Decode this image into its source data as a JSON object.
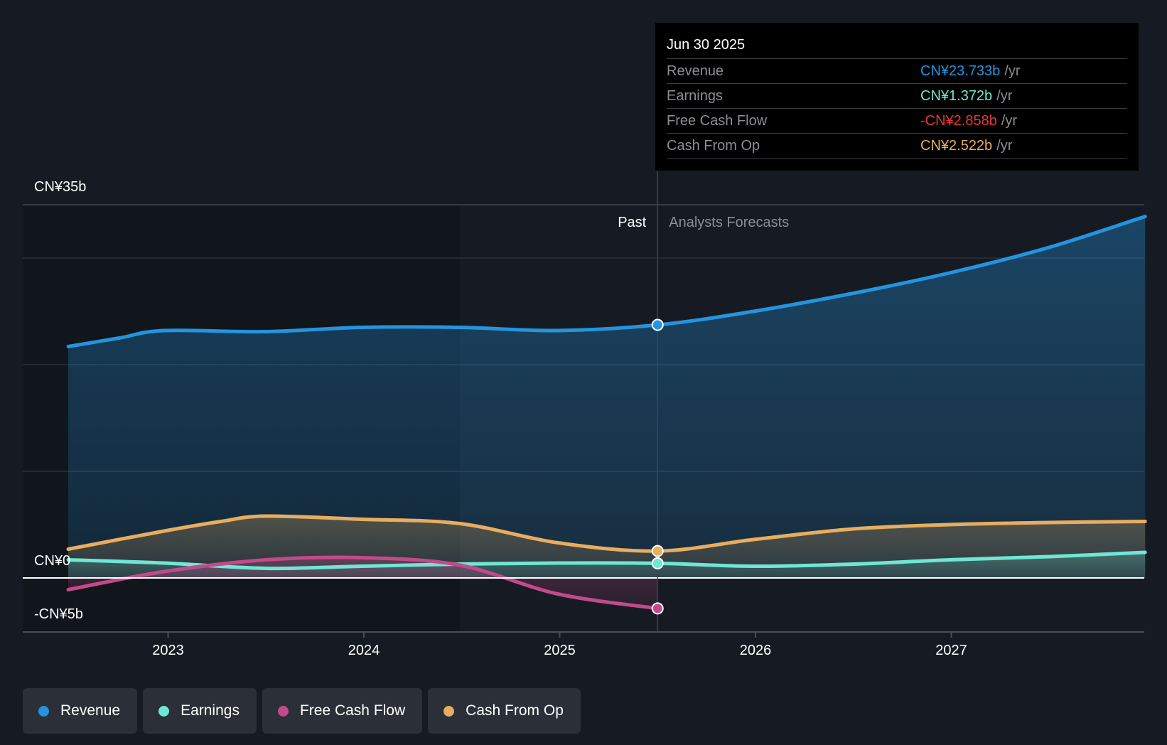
{
  "tooltip": {
    "date": "Jun 30 2025",
    "rows": [
      {
        "label": "Revenue",
        "value": "CN¥23.733b",
        "unit": "/yr",
        "color": "#2394df"
      },
      {
        "label": "Earnings",
        "value": "CN¥1.372b",
        "unit": "/yr",
        "color": "#6ee7d3"
      },
      {
        "label": "Free Cash Flow",
        "value": "-CN¥2.858b",
        "unit": "/yr",
        "color": "#e5383b"
      },
      {
        "label": "Cash From Op",
        "value": "CN¥2.522b",
        "unit": "/yr",
        "color": "#e8ad5e"
      }
    ]
  },
  "legend": [
    {
      "label": "Revenue",
      "color": "#2394df"
    },
    {
      "label": "Earnings",
      "color": "#6ee7d3"
    },
    {
      "label": "Free Cash Flow",
      "color": "#c34a8a"
    },
    {
      "label": "Cash From Op",
      "color": "#e8ad5e"
    }
  ],
  "chart_data": {
    "type": "line",
    "title": "",
    "xlabel": "",
    "ylabel": "",
    "ylim": [
      -5,
      35
    ],
    "xlim": [
      2022.35,
      2028.0
    ],
    "y_tick_labels": [
      {
        "value": 35,
        "label": "CN¥35b"
      },
      {
        "value": 0,
        "label": "CN¥0"
      },
      {
        "value": -5,
        "label": "-CN¥5b"
      }
    ],
    "gridlines": [
      35,
      30,
      20,
      10,
      0,
      -5
    ],
    "x_ticks": [
      {
        "value": 2023,
        "label": "2023"
      },
      {
        "value": 2024,
        "label": "2024"
      },
      {
        "value": 2025,
        "label": "2025"
      },
      {
        "value": 2026,
        "label": "2026"
      },
      {
        "value": 2027,
        "label": "2027"
      }
    ],
    "past_label": "Past",
    "forecast_label": "Analysts Forecasts",
    "past_highlight_start": 2024.49,
    "divider_x": 2025.5,
    "unit": "CN¥ billions",
    "series": [
      {
        "name": "Revenue",
        "color": "#2394df",
        "x": [
          2022.49,
          2022.75,
          2022.98,
          2023.5,
          2023.99,
          2024.49,
          2024.99,
          2025.5,
          2025.99,
          2026.5,
          2026.99,
          2027.5,
          2027.99
        ],
        "values": [
          21.7,
          22.5,
          23.2,
          23.1,
          23.5,
          23.5,
          23.2,
          23.73,
          25.0,
          26.7,
          28.6,
          31.0,
          33.9
        ]
      },
      {
        "name": "Earnings",
        "color": "#6ee7d3",
        "x": [
          2022.49,
          2022.98,
          2023.5,
          2023.99,
          2024.49,
          2024.99,
          2025.5,
          2025.99,
          2026.5,
          2026.99,
          2027.5,
          2027.99
        ],
        "values": [
          1.7,
          1.4,
          0.9,
          1.1,
          1.3,
          1.4,
          1.372,
          1.1,
          1.3,
          1.7,
          2.0,
          2.4
        ]
      },
      {
        "name": "Free Cash Flow",
        "color": "#c34a8a",
        "x": [
          2022.49,
          2022.98,
          2023.5,
          2023.99,
          2024.49,
          2024.99,
          2025.5
        ],
        "values": [
          -1.1,
          0.6,
          1.7,
          1.9,
          1.2,
          -1.5,
          -2.858
        ]
      },
      {
        "name": "Cash From Op",
        "color": "#e8ad5e",
        "x": [
          2022.49,
          2022.98,
          2023.27,
          2023.5,
          2023.99,
          2024.49,
          2024.99,
          2025.5,
          2025.99,
          2026.5,
          2026.99,
          2027.5,
          2027.99
        ],
        "values": [
          2.7,
          4.4,
          5.3,
          5.8,
          5.5,
          5.1,
          3.3,
          2.522,
          3.6,
          4.6,
          5.0,
          5.2,
          5.3
        ]
      }
    ]
  }
}
